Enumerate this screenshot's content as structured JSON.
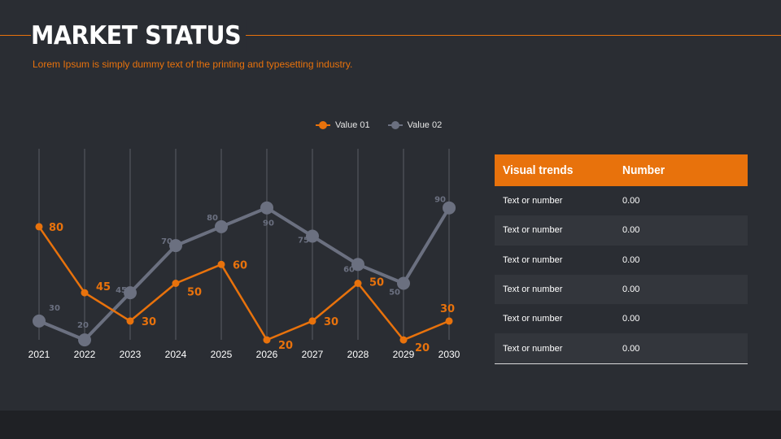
{
  "slide": {
    "title": "MARKET STATUS",
    "subtitle": "Lorem Ipsum is simply dummy text of the printing and typesetting industry."
  },
  "colors": {
    "background": "#2a2d33",
    "accent": "#e8720c",
    "series2": "#6b7080",
    "gridline": "#5a5d65"
  },
  "legend": [
    {
      "label": "Value 01"
    },
    {
      "label": "Value 02"
    }
  ],
  "chart_data": {
    "type": "line",
    "x": [
      "2021",
      "2022",
      "2023",
      "2024",
      "2025",
      "2026",
      "2027",
      "2028",
      "2029",
      "2030"
    ],
    "series": [
      {
        "name": "Value 01",
        "color": "#e8720c",
        "values": [
          80,
          45,
          30,
          50,
          60,
          20,
          30,
          50,
          20,
          30
        ]
      },
      {
        "name": "Value 02",
        "color": "#6b7080",
        "values": [
          30,
          20,
          45,
          70,
          80,
          90,
          75,
          60,
          50,
          90
        ]
      }
    ],
    "grid": "vertical",
    "legend_position": "top-center"
  },
  "table": {
    "headers": [
      "Visual trends",
      "Number"
    ],
    "rows": [
      [
        "Text or number",
        "0.00"
      ],
      [
        "Text or number",
        "0.00"
      ],
      [
        "Text or number",
        "0.00"
      ],
      [
        "Text or number",
        "0.00"
      ],
      [
        "Text or number",
        "0.00"
      ],
      [
        "Text or number",
        "0.00"
      ]
    ]
  }
}
